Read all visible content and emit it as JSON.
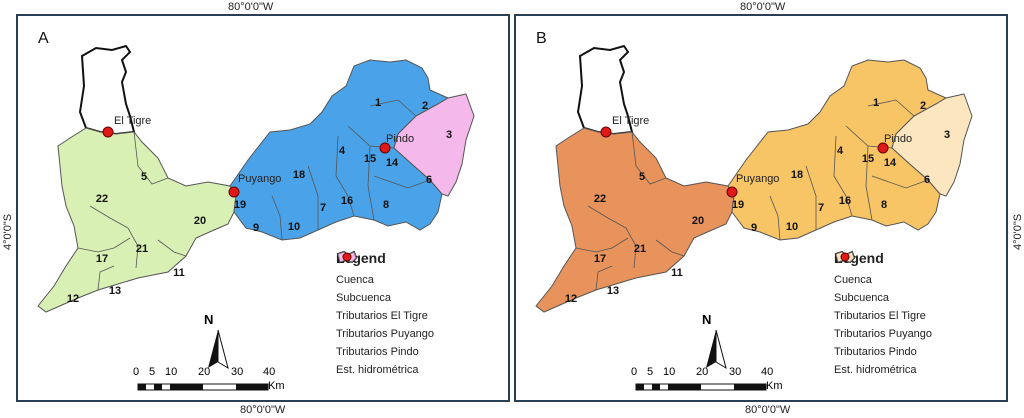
{
  "coordinates": {
    "longitude": "80°0'0\"W",
    "latitude": "4°0'0\"S"
  },
  "panels": [
    {
      "label": "A",
      "colors": {
        "tigre": "#d9f0b5",
        "puyango": "#4aa3e8",
        "pindo": "#f5b8ea"
      }
    },
    {
      "label": "B",
      "colors": {
        "tigre": "#e8925c",
        "puyango": "#f7c466",
        "pindo": "#fbe6c0"
      }
    }
  ],
  "places": {
    "tigre": "El Tigre",
    "puyango": "Puyango",
    "pindo": "Pindo"
  },
  "subbasins": [
    "1",
    "2",
    "3",
    "4",
    "5",
    "6",
    "7",
    "8",
    "9",
    "10",
    "11",
    "12",
    "13",
    "14",
    "15",
    "16",
    "17",
    "18",
    "19",
    "20",
    "21",
    "22"
  ],
  "legend": {
    "title": "Legend",
    "items": [
      "Cuenca",
      "Subcuenca",
      "Tributarios El Tigre",
      "Tributarios Puyango",
      "Tributarios Pindo",
      "Est. hidrométrica"
    ]
  },
  "scale": {
    "ticks": [
      "0",
      "5",
      "10",
      "20",
      "30",
      "40"
    ],
    "unit": "Km"
  },
  "north": "N"
}
